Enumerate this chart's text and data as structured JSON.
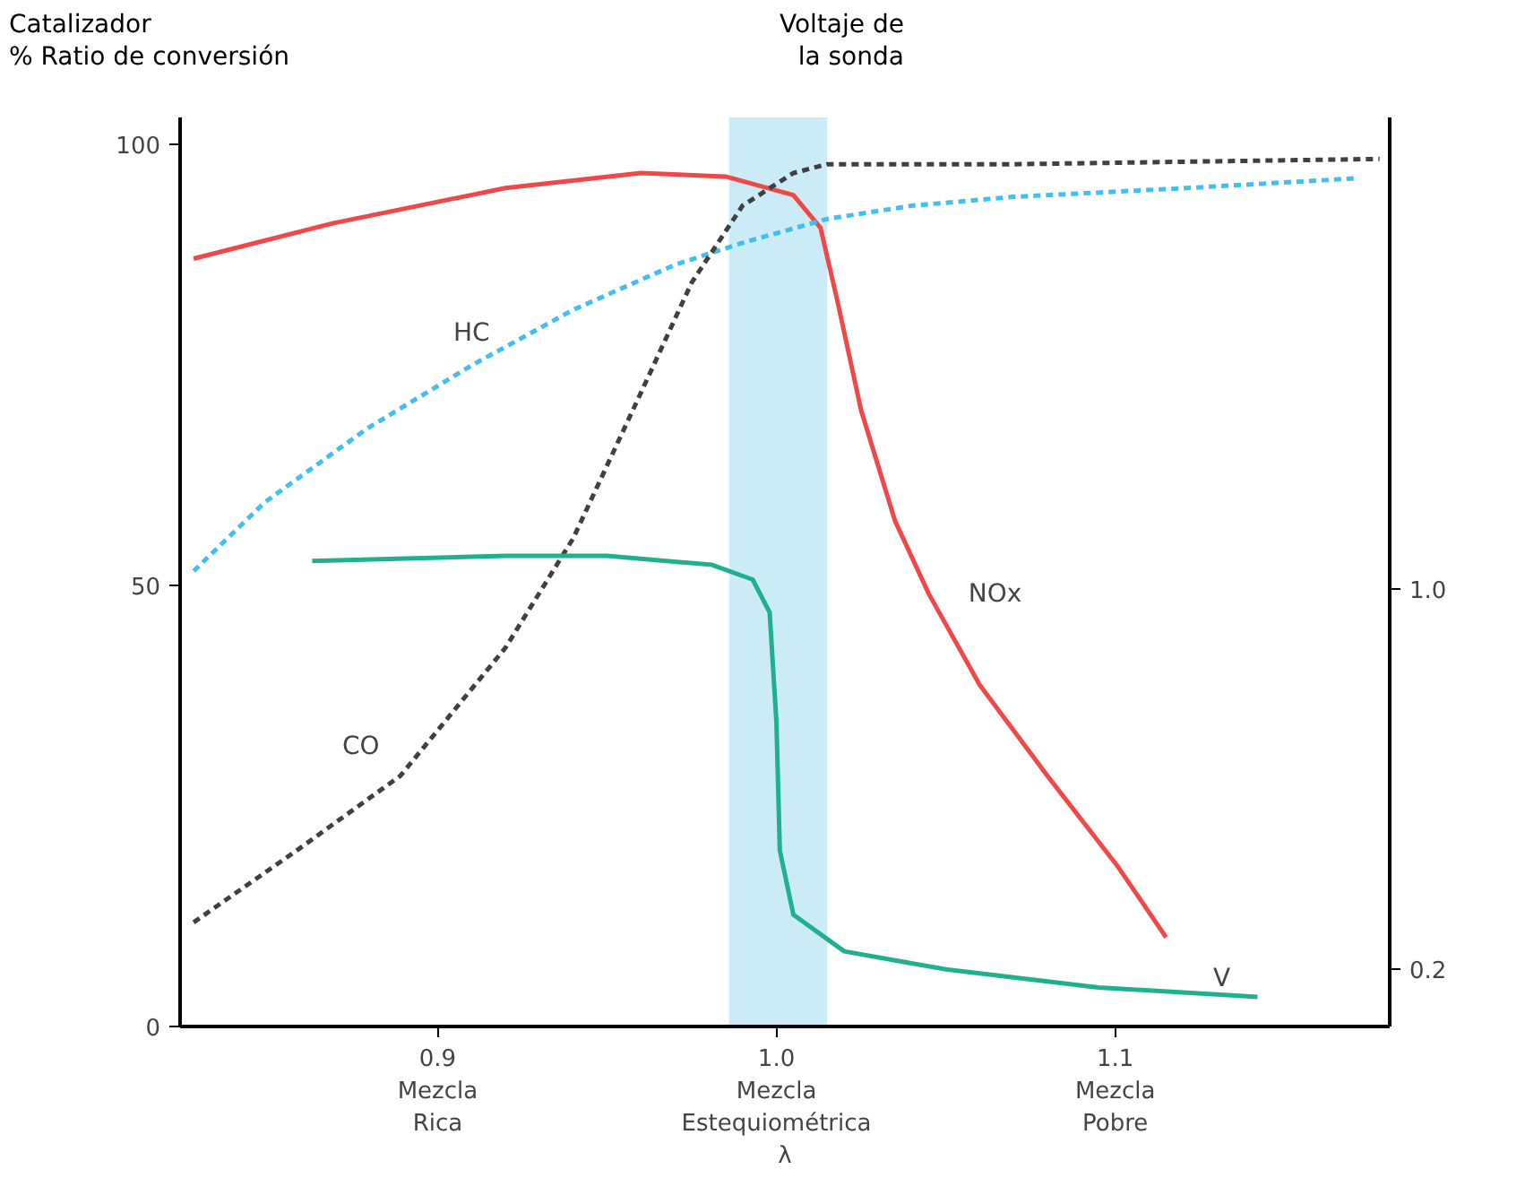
{
  "chart_data": {
    "type": "line",
    "ylabel": "Catalizador\n% Ratio de conversión",
    "y2label": "Voltaje de\nla sonda",
    "xlabel": "λ",
    "xlim": [
      0.824,
      1.181
    ],
    "ylim": [
      0,
      103
    ],
    "y2lim": [
      0.08,
      1.99
    ],
    "xticks": [
      {
        "value": 0.9,
        "label": "0.9\nMezcla\nRica"
      },
      {
        "value": 1.0,
        "label": "1.0\nMezcla\nEstequiométrica"
      },
      {
        "value": 1.1,
        "label": "1.1\nMezcla\nPobre"
      }
    ],
    "yticks": [
      0,
      50,
      100
    ],
    "y2ticks": [
      0.2,
      {
        "value": 1.0,
        "label": "1.0"
      }
    ],
    "grid": false,
    "bands": [
      {
        "axis": "x",
        "from": 0.986,
        "to": 1.015,
        "color": "#a8dff0"
      }
    ],
    "series": [
      {
        "name": "NOx",
        "color": "#f04848",
        "line_style": "solid",
        "x": [
          0.828,
          0.869,
          0.92,
          0.96,
          0.985,
          1.005,
          1.013,
          1.018,
          1.025,
          1.035,
          1.045,
          1.06,
          1.08,
          1.101,
          1.115
        ],
        "values": [
          87,
          91,
          95,
          96.7,
          96.3,
          94.2,
          90.5,
          82.2,
          69.8,
          57.3,
          49,
          38.7,
          28.4,
          18,
          10.1
        ]
      },
      {
        "name": "HC",
        "color": "#40bff0",
        "line_style": "dashed",
        "x": [
          0.828,
          0.849,
          0.879,
          0.91,
          0.94,
          0.97,
          0.99,
          1.015,
          1.04,
          1.07,
          1.121,
          1.171
        ],
        "values": [
          51.6,
          59.4,
          67.7,
          74.9,
          81.2,
          86.3,
          88.8,
          91.5,
          93,
          94,
          95,
          96.1
        ]
      },
      {
        "name": "CO",
        "color": "#404040",
        "line_style": "dashed",
        "x": [
          0.828,
          0.859,
          0.889,
          0.92,
          0.94,
          0.96,
          0.975,
          0.99,
          1.005,
          1.015,
          1.07,
          1.178
        ],
        "values": [
          11.8,
          20.1,
          28.4,
          42.9,
          55.3,
          71.8,
          84.3,
          93,
          96.7,
          97.7,
          97.7,
          98.3
        ]
      },
      {
        "name": "V",
        "color": "#20b090",
        "line_style": "solid",
        "axis": "y2",
        "x": [
          0.863,
          0.92,
          0.95,
          0.981,
          0.993,
          0.998,
          1.0,
          1.001,
          1.005,
          1.02,
          1.05,
          1.095,
          1.142
        ],
        "values": [
          1.058,
          1.069,
          1.069,
          1.05,
          1.019,
          0.95,
          0.719,
          0.45,
          0.315,
          0.238,
          0.2,
          0.162,
          0.142
        ]
      }
    ]
  }
}
